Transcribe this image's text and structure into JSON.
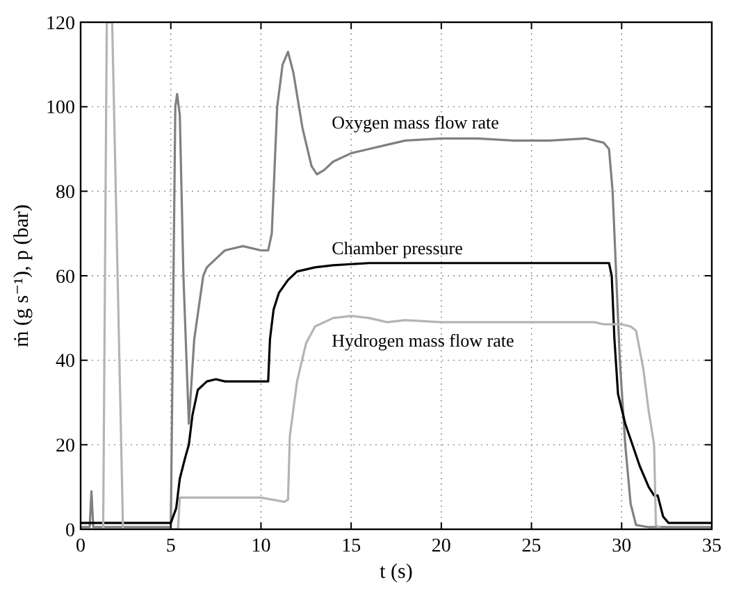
{
  "chart_data": {
    "type": "line",
    "xlabel": "t (s)",
    "ylabel": "ṁ (g s⁻¹), p (bar)",
    "xlim": [
      0,
      35
    ],
    "ylim": [
      0,
      120
    ],
    "xticks": [
      0,
      5,
      10,
      15,
      20,
      25,
      30,
      35
    ],
    "yticks": [
      0,
      20,
      40,
      60,
      80,
      100,
      120
    ],
    "grid": true,
    "marker": "none",
    "line_style": "solid",
    "series": [
      {
        "name": "Oxygen mass flow rate",
        "color": "#808080",
        "x": [
          0,
          0.5,
          0.6,
          0.7,
          5.0,
          5.25,
          5.35,
          5.5,
          5.7,
          6.0,
          6.3,
          6.8,
          7.0,
          7.5,
          8,
          9,
          10,
          10.4,
          10.6,
          10.9,
          11.2,
          11.5,
          11.8,
          12.3,
          12.8,
          13.1,
          13.5,
          14,
          15,
          16,
          17,
          18,
          20,
          22,
          24,
          26,
          28,
          29,
          29.3,
          29.5,
          29.7,
          29.9,
          30.2,
          30.5,
          30.8,
          31.5,
          35
        ],
        "values": [
          0.5,
          0.5,
          9,
          0.5,
          0.5,
          100,
          103,
          98,
          60,
          25,
          45,
          60,
          62,
          64,
          66,
          67,
          66,
          66,
          70,
          100,
          110,
          113,
          108,
          95,
          86,
          84,
          85,
          87,
          89,
          90,
          91,
          92,
          92.5,
          92.5,
          92,
          92,
          92.5,
          91.5,
          90,
          80,
          60,
          40,
          20,
          6,
          1,
          0.5,
          0.5
        ]
      },
      {
        "name": "Chamber pressure",
        "color": "#000000",
        "x": [
          0,
          5,
          5.3,
          5.5,
          5.8,
          6,
          6.2,
          6.5,
          7,
          7.5,
          8,
          9,
          10,
          10.4,
          10.5,
          10.7,
          11,
          11.5,
          12,
          13,
          14,
          16,
          20,
          25,
          29.3,
          29.45,
          29.6,
          29.8,
          30.2,
          30.6,
          31,
          31.5,
          31.8,
          32,
          32.3,
          32.6,
          35
        ],
        "values": [
          1.5,
          1.5,
          5,
          12,
          17,
          20,
          27,
          33,
          35,
          35.5,
          35,
          35,
          35,
          35,
          45,
          52,
          56,
          59,
          61,
          62,
          62.5,
          63,
          63,
          63,
          63,
          60,
          45,
          32,
          25,
          20,
          15,
          10,
          8,
          8,
          3,
          1.5,
          1.5
        ]
      },
      {
        "name": "Hydrogen mass flow rate",
        "color": "#b4b4b4",
        "x": [
          0,
          1.25,
          1.45,
          1.75,
          2.35,
          5.4,
          5.5,
          8,
          10,
          11.3,
          11.5,
          11.6,
          12,
          12.5,
          13,
          14,
          15,
          16,
          17,
          18,
          20,
          22,
          25,
          27,
          28.5,
          29,
          30,
          30.5,
          30.8,
          31.2,
          31.5,
          31.8,
          31.9,
          32.2,
          35
        ],
        "values": [
          0,
          0,
          120,
          120,
          0,
          0,
          7.5,
          7.5,
          7.5,
          6.5,
          7,
          22,
          35,
          44,
          48,
          50,
          50.5,
          50,
          49,
          49.5,
          49,
          49,
          49,
          49,
          49,
          48.5,
          48.5,
          48,
          47,
          38,
          28,
          20,
          1,
          0,
          0
        ]
      }
    ]
  }
}
